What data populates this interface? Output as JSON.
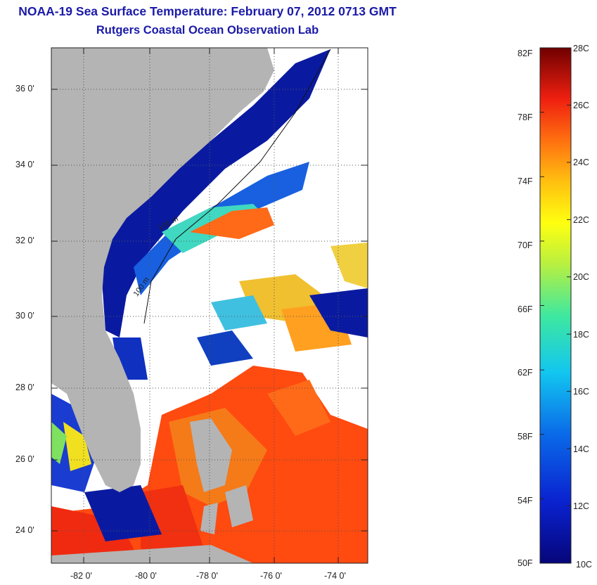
{
  "header": {
    "title": "NOAA-19 Sea Surface Temperature:  February 07, 2012 0713 GMT",
    "subtitle": "Rutgers Coastal Ocean Observation Lab"
  },
  "map": {
    "lat_labels": [
      "36 0'",
      "34 0'",
      "32 0'",
      "30 0'",
      "28 0'",
      "26 0'",
      "24 0'"
    ],
    "lon_labels": [
      "-82 0'",
      "-80 0'",
      "-78 0'",
      "-76 0'",
      "-74 0'"
    ],
    "isobath_labels": [
      "100 m",
      "100 m"
    ],
    "colors": {
      "land": "#b4b4b4",
      "cloud": "#ffffff",
      "cold": "#0a1aa0",
      "warm": "#ff4a10"
    }
  },
  "colorbar": {
    "fahrenheit_labels": [
      "82F",
      "78F",
      "74F",
      "70F",
      "66F",
      "62F",
      "58F",
      "54F",
      "50F"
    ],
    "celsius_labels": [
      "28C",
      "26C",
      "24C",
      "22C",
      "20C",
      "18C",
      "16C",
      "14C",
      "12C",
      "10C"
    ],
    "range_c": [
      10,
      28
    ],
    "range_f": [
      50,
      82
    ]
  }
}
